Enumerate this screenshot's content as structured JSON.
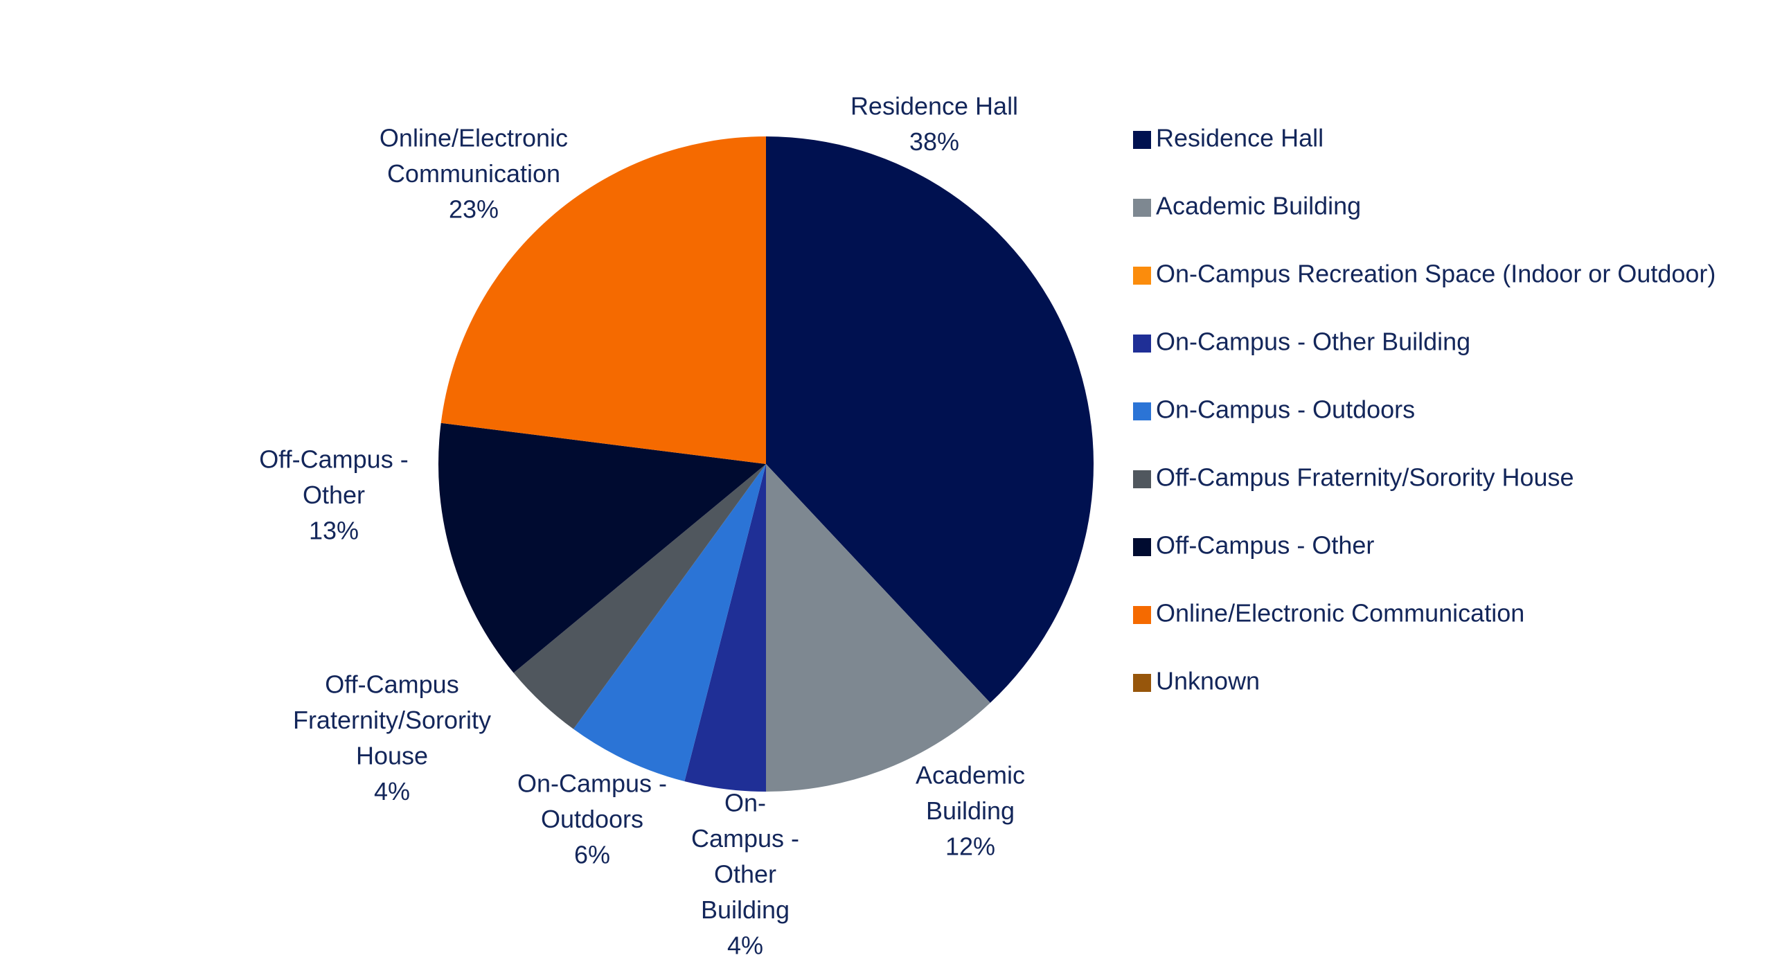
{
  "chart_data": {
    "type": "pie",
    "title": "",
    "start_angle": "12 o'clock, clockwise",
    "legend_position": "right",
    "categories": [
      "Residence Hall",
      "Academic Building",
      "On-Campus Recreation Space (Indoor or Outdoor)",
      "On-Campus - Other Building",
      "On-Campus - Outdoors",
      "Off-Campus Fraternity/Sorority House",
      "Off-Campus - Other",
      "Online/Electronic Communication",
      "Unknown"
    ],
    "values": [
      38,
      12,
      0,
      4,
      6,
      4,
      13,
      23,
      0
    ],
    "colors": [
      "#001150",
      "#7e8891",
      "#fb8c0c",
      "#1f2f96",
      "#2b74d6",
      "#50575e",
      "#000b30",
      "#f56a00",
      "#97560b"
    ],
    "data_labels": [
      [
        "Residence Hall",
        "38%"
      ],
      [
        "Academic",
        "Building",
        "12%"
      ],
      [],
      [
        "On-",
        "Campus -",
        "Other",
        "Building",
        "4%"
      ],
      [
        "On-Campus -",
        "Outdoors",
        "6%"
      ],
      [
        "Off-Campus",
        "Fraternity/Sorority",
        "House",
        "4%"
      ],
      [
        "Off-Campus -",
        "Other",
        "13%"
      ],
      [
        "Online/Electronic",
        "Communication",
        "23%"
      ],
      []
    ]
  }
}
